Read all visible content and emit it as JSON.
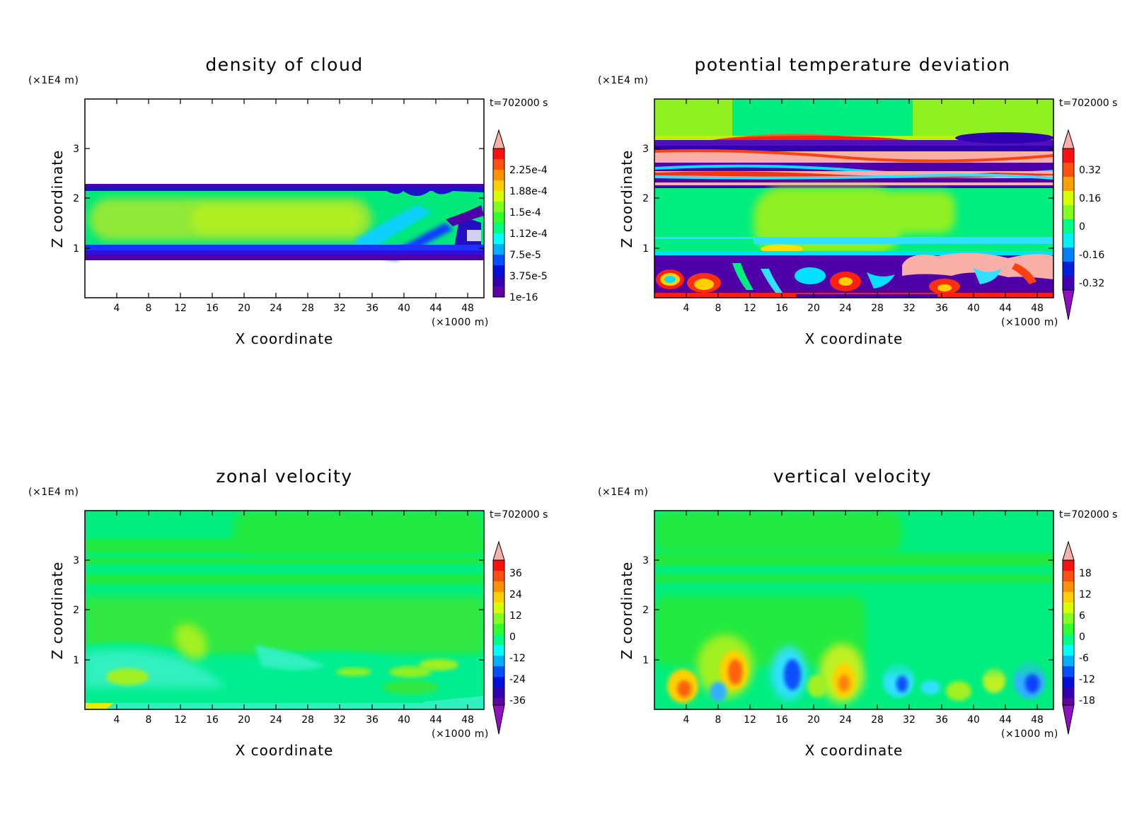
{
  "chart_data": [
    {
      "type": "heatmap",
      "title": "density of cloud",
      "xlabel": "X coordinate",
      "ylabel": "Z coordinate",
      "x_unit": "(×1000 m)",
      "y_unit": "(×1E4 m)",
      "time_label": "t=702000 s",
      "xlim": [
        0,
        50
      ],
      "ylim": [
        0,
        4
      ],
      "xticks": [
        "4",
        "8",
        "12",
        "16",
        "20",
        "24",
        "28",
        "32",
        "36",
        "40",
        "44",
        "48"
      ],
      "yticks": [
        "1",
        "2",
        "3"
      ],
      "colorbar_labels": [
        "2.25e-4",
        "1.88e-4",
        "1.5e-4",
        "1.12e-4",
        "7.5e-5",
        "3.75e-5",
        "1e-16"
      ],
      "colorbar_low_triangle": false
    },
    {
      "type": "heatmap",
      "title": "potential temperature deviation",
      "xlabel": "X coordinate",
      "ylabel": "Z coordinate",
      "x_unit": "(×1000 m)",
      "y_unit": "(×1E4 m)",
      "time_label": "t=702000 s",
      "xlim": [
        0,
        50
      ],
      "ylim": [
        0,
        4
      ],
      "xticks": [
        "4",
        "8",
        "12",
        "16",
        "20",
        "24",
        "28",
        "32",
        "36",
        "40",
        "44",
        "48"
      ],
      "yticks": [
        "1",
        "2",
        "3"
      ],
      "colorbar_labels": [
        "0.32",
        "0.16",
        "0",
        "-0.16",
        "-0.32"
      ],
      "colorbar_low_triangle": true
    },
    {
      "type": "heatmap",
      "title": "zonal velocity",
      "xlabel": "X coordinate",
      "ylabel": "Z coordinate",
      "x_unit": "(×1000 m)",
      "y_unit": "(×1E4 m)",
      "time_label": "t=702000 s",
      "xlim": [
        0,
        50
      ],
      "ylim": [
        0,
        4
      ],
      "xticks": [
        "4",
        "8",
        "12",
        "16",
        "20",
        "24",
        "28",
        "32",
        "36",
        "40",
        "44",
        "48"
      ],
      "yticks": [
        "1",
        "2",
        "3"
      ],
      "colorbar_labels": [
        "36",
        "24",
        "12",
        "0",
        "-12",
        "-24",
        "-36"
      ],
      "colorbar_low_triangle": true
    },
    {
      "type": "heatmap",
      "title": "vertical velocity",
      "xlabel": "X coordinate",
      "ylabel": "Z coordinate",
      "x_unit": "(×1000 m)",
      "y_unit": "(×1E4 m)",
      "time_label": "t=702000 s",
      "xlim": [
        0,
        50
      ],
      "ylim": [
        0,
        4
      ],
      "xticks": [
        "4",
        "8",
        "12",
        "16",
        "20",
        "24",
        "28",
        "32",
        "36",
        "40",
        "44",
        "48"
      ],
      "yticks": [
        "1",
        "2",
        "3"
      ],
      "colorbar_labels": [
        "18",
        "12",
        "6",
        "0",
        "-6",
        "-12",
        "-18"
      ],
      "colorbar_low_triangle": true
    }
  ]
}
